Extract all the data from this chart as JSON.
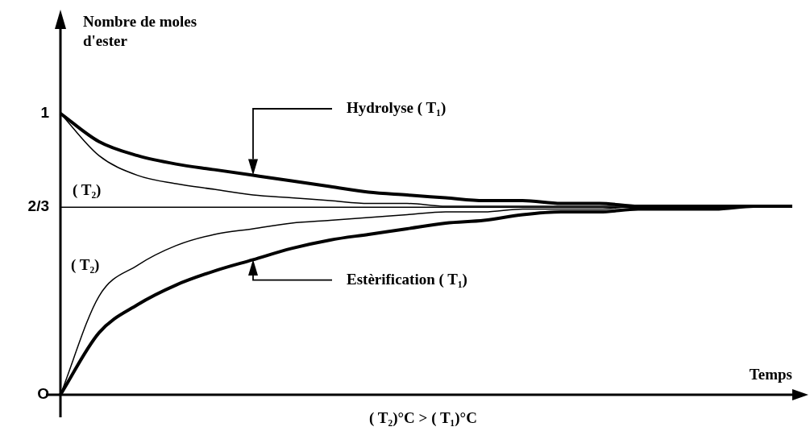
{
  "chart_data": {
    "type": "line",
    "xlabel": "Temps",
    "ylabel": "Nombre de moles\nd'ester",
    "categories": [
      null,
      null,
      null,
      null,
      null,
      null,
      null,
      null,
      null,
      null,
      null,
      null,
      null,
      null,
      null,
      null,
      null,
      null,
      null,
      null
    ],
    "series": [
      {
        "name": "Hydrolyse ( T₁)",
        "color": "#000000",
        "values": [
          1,
          0.9,
          0.85,
          0.82,
          0.8,
          0.78,
          0.76,
          0.74,
          0.72,
          0.71,
          0.7,
          0.69,
          0.69,
          0.68,
          0.68,
          0.67,
          0.67,
          0.67,
          0.67,
          0.67
        ]
      },
      {
        "name": "( T₂)",
        "color": "#000000",
        "values": [
          1,
          0.85,
          0.78,
          0.75,
          0.73,
          0.71,
          0.7,
          0.69,
          0.68,
          0.68,
          0.67,
          0.67,
          0.67,
          0.67,
          0.67,
          0.67,
          0.67,
          0.67,
          0.67,
          0.67
        ]
      },
      {
        "name": "Estèrification ( T₁)",
        "color": "#000000",
        "values": [
          0,
          0.22,
          0.32,
          0.39,
          0.44,
          0.48,
          0.52,
          0.55,
          0.57,
          0.59,
          0.61,
          0.62,
          0.64,
          0.65,
          0.65,
          0.66,
          0.66,
          0.66,
          0.67,
          0.67
        ]
      },
      {
        "name": "( T₂)",
        "color": "#000000",
        "values": [
          0,
          0.35,
          0.46,
          0.53,
          0.57,
          0.59,
          0.61,
          0.62,
          0.63,
          0.64,
          0.65,
          0.65,
          0.66,
          0.66,
          0.66,
          0.67,
          0.67,
          0.67,
          0.67,
          0.67
        ]
      }
    ],
    "ylim": [
      0,
      1.3
    ],
    "yticks": [
      {
        "value": 0,
        "label": "O"
      },
      {
        "value": 0.6667,
        "label": "2/3"
      },
      {
        "value": 1,
        "label": "1"
      }
    ],
    "ref_lines": [
      {
        "axis": "y",
        "value": 0.6667,
        "color": "#000000"
      }
    ],
    "annotations": [
      "( T₂)°C > ( T₁)°C"
    ],
    "grid": false,
    "tick_labels": "y",
    "marker": "none",
    "line_style": "solid"
  }
}
